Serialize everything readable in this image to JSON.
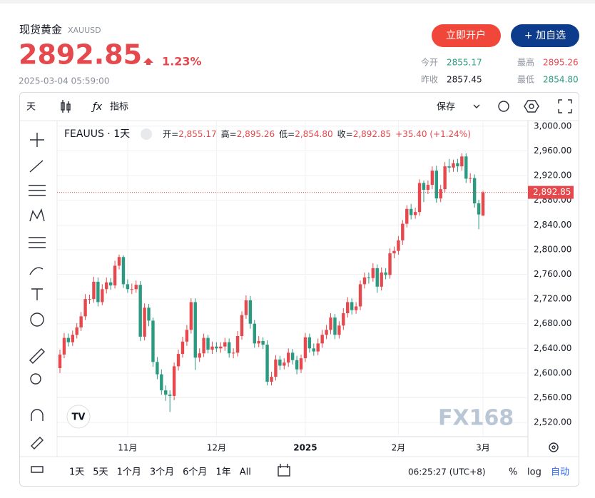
{
  "header": {
    "name": "现货黄金",
    "symbol": "XAUUSD",
    "price": "2892.85",
    "change": "1.23%",
    "time": "2025-03-04 05:59:00"
  },
  "buttons": [
    "立即开户",
    "+ 加自选"
  ],
  "stats": [
    {
      "label": "今开",
      "value": "2855.17"
    },
    {
      "label": "最高",
      "value": "2895.26"
    },
    {
      "label": "昨收",
      "value": "2857.45"
    },
    {
      "label": "最低",
      "value": "2854.80"
    }
  ],
  "toolbar": {
    "interval": "天",
    "indicators": "指标",
    "save": "保存"
  },
  "chart_data": {
    "type": "candlestick",
    "title": "FEAUUS · 1天",
    "legend": [
      {
        "label": "开=",
        "value": "2,855.17"
      },
      {
        "label": "高=",
        "value": "2,895.26"
      },
      {
        "label": "低=",
        "value": "2,854.80"
      },
      {
        "label": "收=",
        "value": "2,892.85"
      }
    ],
    "change": "+35.40 (+1.24%)",
    "up_color": "#e5484d",
    "down_color": "#2a9a80",
    "grid": true,
    "categories": [
      null,
      null,
      null,
      null,
      null,
      null,
      null,
      null,
      null,
      null,
      null,
      null,
      null,
      null,
      null,
      null,
      "11月",
      null,
      null,
      null,
      null,
      null,
      null,
      null,
      null,
      null,
      null,
      null,
      null,
      null,
      null,
      null,
      null,
      null,
      null,
      null,
      null,
      "12月",
      null,
      null,
      null,
      null,
      null,
      null,
      null,
      null,
      null,
      null,
      null,
      null,
      null,
      null,
      null,
      null,
      null,
      null,
      null,
      null,
      "2025",
      null,
      null,
      null,
      null,
      null,
      null,
      null,
      null,
      null,
      null,
      null,
      null,
      null,
      null,
      null,
      null,
      null,
      null,
      null,
      null,
      null,
      "2月",
      null,
      null,
      null,
      null,
      null,
      null,
      null,
      null,
      null,
      null,
      null,
      null,
      null,
      null,
      null,
      null,
      null,
      null,
      null,
      "3月"
    ],
    "open": [
      2608,
      2630,
      2657,
      2650,
      2662,
      2674,
      2692,
      2720,
      2720,
      2748,
      2715,
      2736,
      2747,
      2742,
      2774,
      2788,
      2744,
      2736,
      2736,
      2743,
      2659,
      2706,
      2685,
      2618,
      2598,
      2572,
      2565,
      2563,
      2611,
      2631,
      2651,
      2670,
      2715,
      2625,
      2632,
      2657,
      2638,
      2643,
      2640,
      2643,
      2650,
      2632,
      2633,
      2660,
      2694,
      2718,
      2680,
      2648,
      2652,
      2646,
      2586,
      2594,
      2622,
      2612,
      2617,
      2633,
      2621,
      2606,
      2624,
      2658,
      2640,
      2635,
      2648,
      2662,
      2670,
      2690,
      2662,
      2677,
      2697,
      2715,
      2702,
      2708,
      2744,
      2755,
      2754,
      2770,
      2740,
      2763,
      2759,
      2794,
      2798,
      2815,
      2842,
      2866,
      2856,
      2861,
      2908,
      2897,
      2905,
      2928,
      2883,
      2898,
      2935,
      2933,
      2940,
      2935,
      2951,
      2915,
      2916,
      2875,
      2855.17
    ],
    "high": [
      2638,
      2665,
      2664,
      2669,
      2681,
      2699,
      2728,
      2727,
      2756,
      2755,
      2744,
      2755,
      2754,
      2782,
      2792,
      2791,
      2752,
      2745,
      2750,
      2749,
      2713,
      2712,
      2690,
      2626,
      2606,
      2580,
      2572,
      2617,
      2638,
      2659,
      2678,
      2721,
      2721,
      2640,
      2664,
      2662,
      2651,
      2650,
      2650,
      2657,
      2656,
      2640,
      2668,
      2700,
      2726,
      2725,
      2686,
      2660,
      2658,
      2653,
      2602,
      2629,
      2628,
      2624,
      2640,
      2639,
      2628,
      2630,
      2665,
      2664,
      2648,
      2656,
      2670,
      2678,
      2697,
      2696,
      2684,
      2705,
      2723,
      2721,
      2715,
      2750,
      2763,
      2763,
      2778,
      2776,
      2771,
      2770,
      2802,
      2805,
      2822,
      2848,
      2872,
      2874,
      2868,
      2914,
      2912,
      2912,
      2935,
      2936,
      2905,
      2942,
      2947,
      2946,
      2947,
      2956,
      2956,
      2924,
      2922,
      2881,
      2895.26
    ],
    "low": [
      2600,
      2624,
      2643,
      2644,
      2656,
      2668,
      2686,
      2712,
      2714,
      2708,
      2710,
      2729,
      2735,
      2737,
      2768,
      2738,
      2730,
      2728,
      2730,
      2652,
      2653,
      2676,
      2610,
      2590,
      2565,
      2555,
      2537,
      2556,
      2604,
      2625,
      2644,
      2664,
      2605,
      2618,
      2626,
      2632,
      2631,
      2634,
      2633,
      2636,
      2625,
      2624,
      2627,
      2654,
      2688,
      2672,
      2641,
      2642,
      2639,
      2580,
      2580,
      2588,
      2605,
      2606,
      2610,
      2614,
      2598,
      2600,
      2618,
      2633,
      2628,
      2629,
      2641,
      2655,
      2663,
      2655,
      2656,
      2670,
      2690,
      2695,
      2696,
      2702,
      2737,
      2745,
      2748,
      2730,
      2734,
      2752,
      2753,
      2786,
      2792,
      2808,
      2836,
      2849,
      2850,
      2855,
      2877,
      2890,
      2898,
      2876,
      2877,
      2892,
      2925,
      2926,
      2926,
      2928,
      2908,
      2908,
      2868,
      2833,
      2854.8
    ],
    "close": [
      2630,
      2657,
      2650,
      2662,
      2674,
      2692,
      2720,
      2720,
      2748,
      2715,
      2736,
      2747,
      2742,
      2774,
      2788,
      2744,
      2736,
      2736,
      2743,
      2659,
      2706,
      2685,
      2618,
      2598,
      2572,
      2565,
      2563,
      2611,
      2631,
      2651,
      2670,
      2715,
      2625,
      2632,
      2657,
      2638,
      2643,
      2640,
      2643,
      2650,
      2632,
      2633,
      2660,
      2694,
      2718,
      2680,
      2648,
      2652,
      2646,
      2586,
      2594,
      2622,
      2612,
      2617,
      2633,
      2621,
      2606,
      2624,
      2658,
      2640,
      2635,
      2648,
      2662,
      2670,
      2690,
      2662,
      2677,
      2697,
      2715,
      2702,
      2708,
      2744,
      2755,
      2754,
      2770,
      2740,
      2763,
      2759,
      2794,
      2798,
      2815,
      2842,
      2866,
      2856,
      2861,
      2908,
      2897,
      2905,
      2928,
      2883,
      2898,
      2935,
      2933,
      2940,
      2935,
      2951,
      2915,
      2916,
      2875,
      2857,
      2892.85
    ],
    "ylim": [
      2497,
      3008
    ],
    "yticks": [
      {
        "value": 3000,
        "label": "3,000.00"
      },
      {
        "value": 2960,
        "label": "2,960.00"
      },
      {
        "value": 2920,
        "label": "2,920.00"
      },
      {
        "value": 2880,
        "label": "2,880.00"
      },
      {
        "value": 2840,
        "label": "2,840.00"
      },
      {
        "value": 2800,
        "label": "2,800.00"
      },
      {
        "value": 2760,
        "label": "2,760.00"
      },
      {
        "value": 2720,
        "label": "2,720.00"
      },
      {
        "value": 2680,
        "label": "2,680.00"
      },
      {
        "value": 2640,
        "label": "2,640.00"
      },
      {
        "value": 2600,
        "label": "2,600.00"
      },
      {
        "value": 2560,
        "label": "2,560.00"
      },
      {
        "value": 2520,
        "label": "2,520.00"
      }
    ],
    "last_price": {
      "value": 2892.85,
      "label": "2,892.85"
    }
  },
  "range_buttons": [
    "1天",
    "5天",
    "1个月",
    "3个月",
    "6个月",
    "1年",
    "All"
  ],
  "clock": "06:25:27 (UTC+8)",
  "scale_options": [
    "%",
    "log",
    "自动"
  ],
  "watermark": "FX168"
}
